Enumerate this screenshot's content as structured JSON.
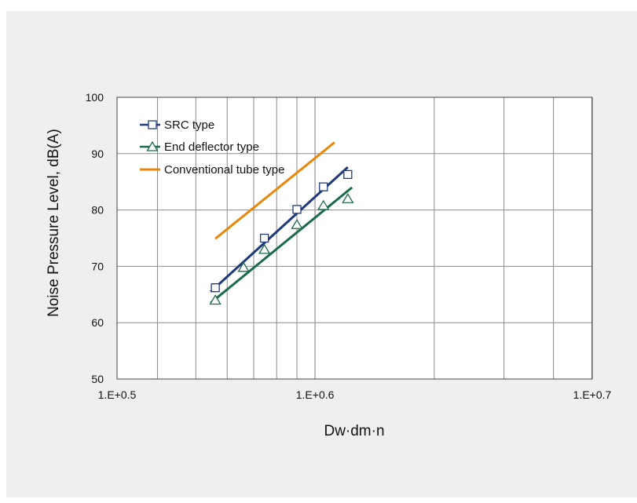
{
  "chart_data": {
    "type": "line",
    "title": "",
    "xlabel": "Dw·dm·n",
    "ylabel": "Noise Pressure Level, dB(A)",
    "x_scale": "log",
    "xlim": [
      316228,
      5011872
    ],
    "ylim": [
      50,
      100
    ],
    "x_ticks": [
      {
        "value": 316228,
        "label": "1.E+0.5"
      },
      {
        "value": 1000000,
        "label": "1.E+0.6"
      },
      {
        "value": 5011872,
        "label": "1.E+0.7"
      }
    ],
    "y_ticks": [
      {
        "value": 50,
        "label": "50"
      },
      {
        "value": 60,
        "label": "60"
      },
      {
        "value": 70,
        "label": "70"
      },
      {
        "value": 80,
        "label": "80"
      },
      {
        "value": 90,
        "label": "90"
      },
      {
        "value": 100,
        "label": "100"
      }
    ],
    "grid": true,
    "legend_position": "top-left",
    "series": [
      {
        "name": "SRC type",
        "color": "#1f3a7a",
        "marker": "square",
        "points": [
          {
            "x": 560000,
            "y": 66.2
          },
          {
            "x": 745000,
            "y": 75
          },
          {
            "x": 900000,
            "y": 80.1
          },
          {
            "x": 1050000,
            "y": 84.1
          },
          {
            "x": 1210000,
            "y": 86.3
          }
        ],
        "fit": [
          {
            "x": 545000,
            "y": 65.5
          },
          {
            "x": 1210000,
            "y": 87.6
          }
        ]
      },
      {
        "name": "End deflector type",
        "color": "#1a6b4a",
        "marker": "triangle",
        "points": [
          {
            "x": 560000,
            "y": 64
          },
          {
            "x": 660000,
            "y": 69.8
          },
          {
            "x": 745000,
            "y": 73
          },
          {
            "x": 900000,
            "y": 77.4
          },
          {
            "x": 1050000,
            "y": 80.8
          },
          {
            "x": 1210000,
            "y": 82
          }
        ],
        "fit": [
          {
            "x": 545000,
            "y": 63.5
          },
          {
            "x": 1240000,
            "y": 84
          }
        ]
      },
      {
        "name": "Conventional tube type",
        "color": "#e8870a",
        "marker": "none",
        "points": [],
        "fit": [
          {
            "x": 560000,
            "y": 74.9
          },
          {
            "x": 1120000,
            "y": 92
          }
        ]
      }
    ]
  }
}
